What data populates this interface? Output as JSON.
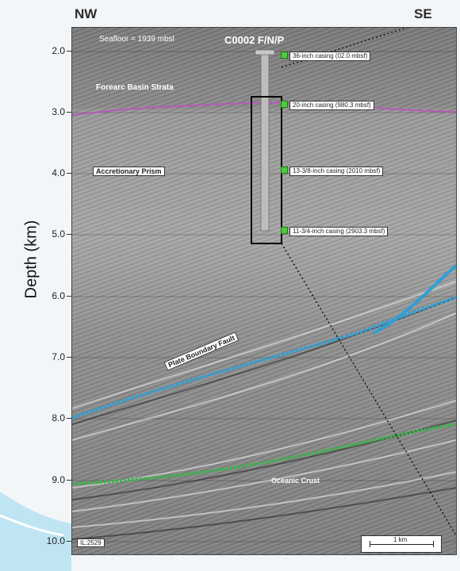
{
  "header": {
    "left_direction": "NW",
    "right_direction": "SE"
  },
  "axis": {
    "label": "Depth  (km)",
    "ticks": [
      "2.0",
      "3.0",
      "4.0",
      "5.0",
      "6.0",
      "7.0",
      "8.0",
      "9.0",
      "10.0"
    ]
  },
  "section": {
    "seafloor_label": "Seafloor = 1939 mbsl",
    "well_name": "C0002 F/N/P",
    "strata_labels": {
      "forearc": "Forearc Basin Strata",
      "prism": "Accretionary Prism",
      "fault": "Plate Boundary Fault",
      "crust": "Oceanic Crust"
    },
    "casings": [
      "36-inch casing (02.0 mbsf)",
      "20-inch casing (980.3 mbsf)",
      "13-3/8-inch casing (2010 mbsf)",
      "11-3/4-inch casing (2903.3 mbsf)"
    ],
    "line_id": "IL:2529",
    "scale_label": "1 km"
  },
  "colors": {
    "fault_blue": "#2f9fd6",
    "crust_green": "#39b54a",
    "horizon_magenta": "#b65bb6",
    "casing_green": "#4ccb3c"
  }
}
